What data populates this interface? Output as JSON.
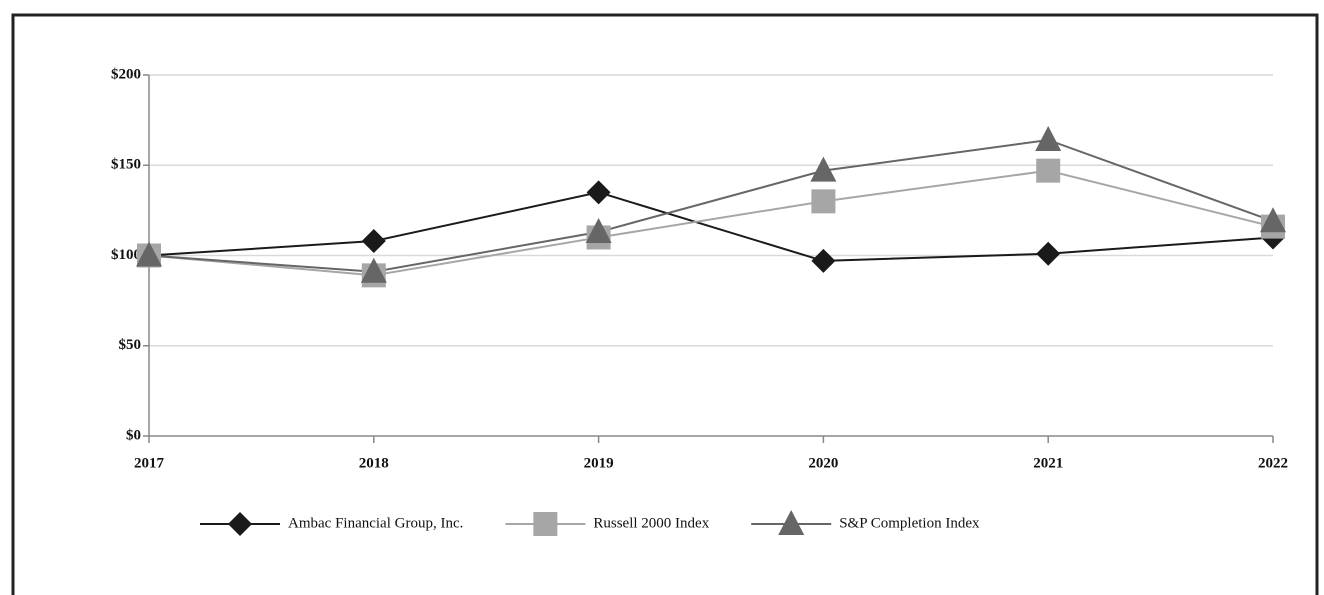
{
  "chart_data": {
    "type": "line",
    "categories": [
      "2017",
      "2018",
      "2019",
      "2020",
      "2021",
      "2022"
    ],
    "series": [
      {
        "name": "Ambac Financial Group, Inc.",
        "color": "#1a1a1a",
        "marker": "diamond",
        "values": [
          100,
          108,
          135,
          97,
          101,
          110
        ]
      },
      {
        "name": "Russell 2000 Index",
        "color": "#a6a6a6",
        "marker": "square",
        "values": [
          100,
          89,
          110,
          130,
          147,
          116
        ]
      },
      {
        "name": "S&P Completion Index",
        "color": "#666666",
        "marker": "triangle",
        "values": [
          100,
          91,
          113,
          147,
          164,
          119
        ]
      }
    ],
    "ylim": [
      0,
      200
    ],
    "yticks": [
      {
        "value": 0,
        "label": "$0"
      },
      {
        "value": 50,
        "label": "$50"
      },
      {
        "value": 100,
        "label": "$100"
      },
      {
        "value": 150,
        "label": "$150"
      },
      {
        "value": 200,
        "label": "$200"
      }
    ],
    "grid": true,
    "legend": "bottom"
  }
}
